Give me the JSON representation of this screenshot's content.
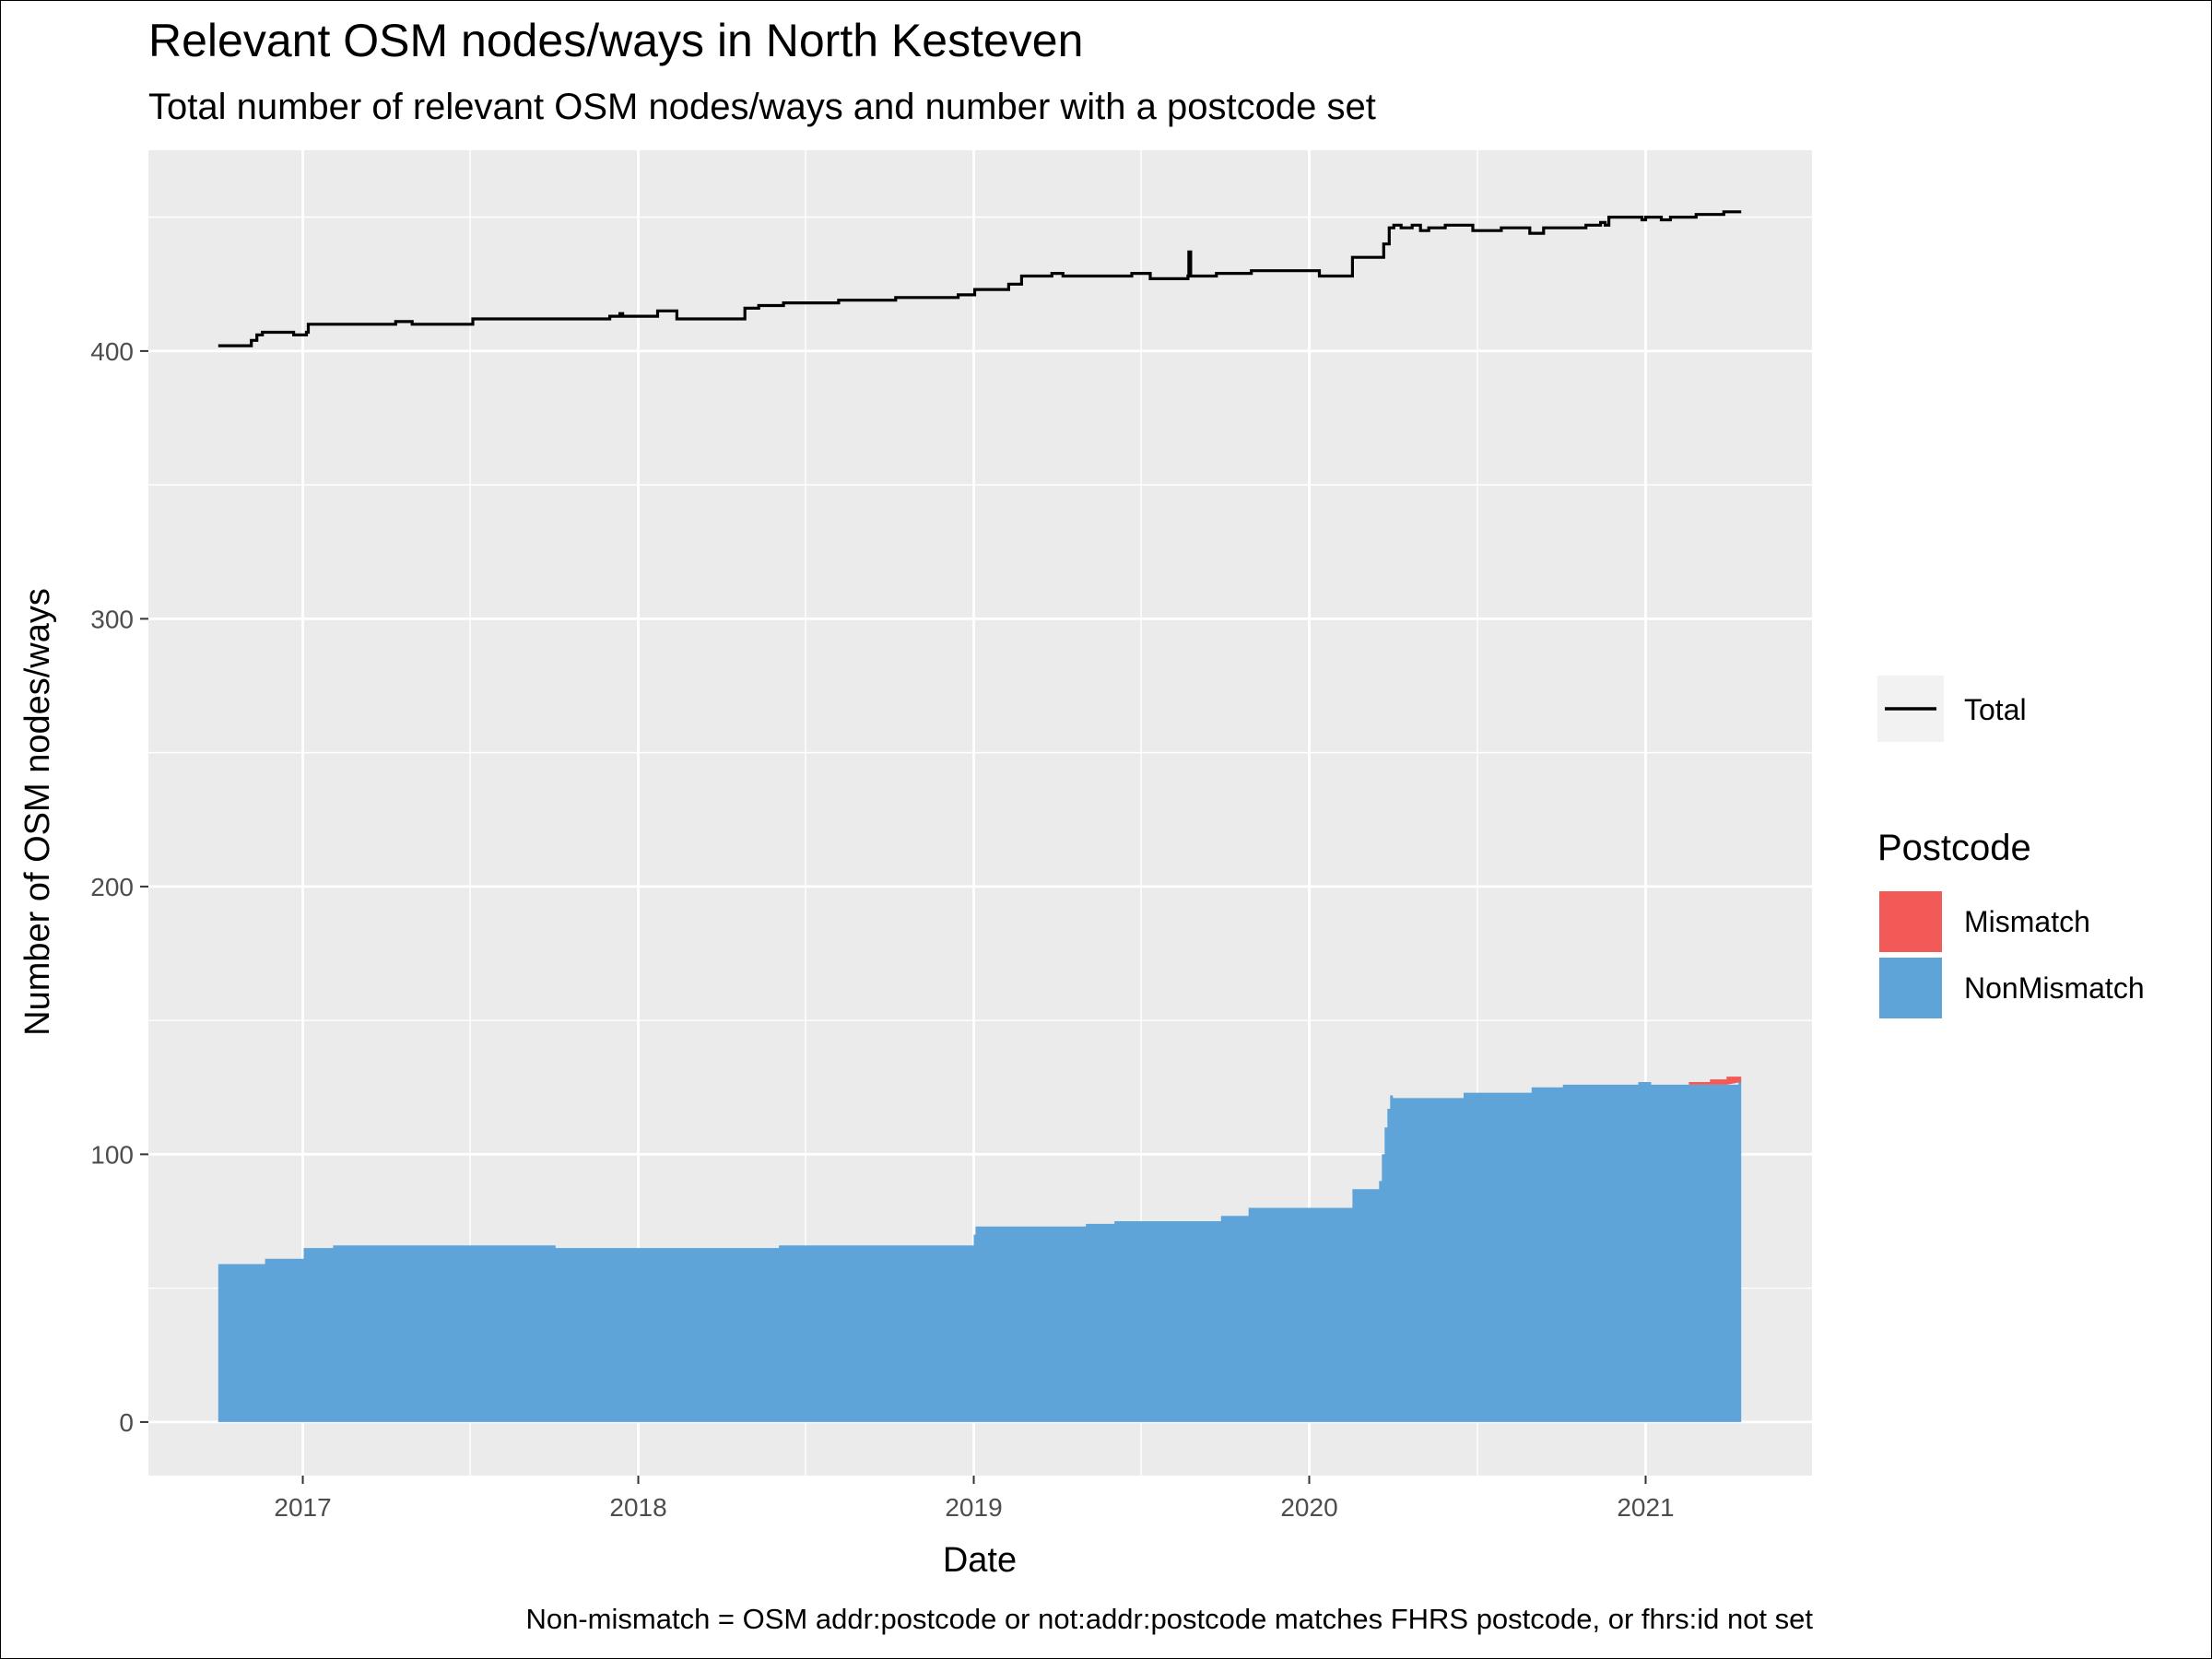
{
  "chart_data": {
    "type": "area",
    "title": "Relevant OSM nodes/ways in North Kesteven",
    "subtitle": "Total number of relevant OSM nodes/ways and number with a postcode set",
    "xlabel": "Date",
    "ylabel": "Number of OSM nodes/ways",
    "caption": "Non-mismatch = OSM addr:postcode or not:addr:postcode matches FHRS postcode, or fhrs:id not set",
    "x_ticks": [
      "2017",
      "2018",
      "2019",
      "2020",
      "2021"
    ],
    "y_ticks": [
      "0",
      "100",
      "200",
      "300",
      "400"
    ],
    "xlim": [
      "2016-07-17",
      "2021-07-01"
    ],
    "ylim": [
      -20,
      475
    ],
    "grid": true,
    "legend_line": {
      "label": "Total",
      "color": "#000000"
    },
    "legend_fill": {
      "title": "Postcode",
      "position": "right",
      "items": [
        {
          "label": "Mismatch",
          "color": "#F25A58"
        },
        {
          "label": "NonMismatch",
          "color": "#5FA4D9"
        }
      ]
    },
    "series": [
      {
        "name": "Total",
        "kind": "step-line",
        "color": "#000000",
        "points": [
          [
            "2016-10-01",
            402
          ],
          [
            "2016-11-05",
            402
          ],
          [
            "2016-11-06",
            404
          ],
          [
            "2016-11-12",
            406
          ],
          [
            "2016-11-18",
            407
          ],
          [
            "2016-12-20",
            407
          ],
          [
            "2016-12-22",
            406
          ],
          [
            "2017-01-01",
            406
          ],
          [
            "2017-01-05",
            407
          ],
          [
            "2017-01-07",
            410
          ],
          [
            "2017-04-10",
            410
          ],
          [
            "2017-04-12",
            411
          ],
          [
            "2017-04-28",
            411
          ],
          [
            "2017-04-30",
            410
          ],
          [
            "2017-06-20",
            410
          ],
          [
            "2017-06-30",
            410
          ],
          [
            "2017-07-05",
            412
          ],
          [
            "2017-11-30",
            412
          ],
          [
            "2017-12-01",
            413
          ],
          [
            "2017-12-10",
            413
          ],
          [
            "2017-12-12",
            414
          ],
          [
            "2017-12-15",
            413
          ],
          [
            "2018-01-20",
            413
          ],
          [
            "2018-01-22",
            415
          ],
          [
            "2018-02-10",
            415
          ],
          [
            "2018-02-12",
            412
          ],
          [
            "2018-04-25",
            412
          ],
          [
            "2018-04-27",
            416
          ],
          [
            "2018-05-10",
            416
          ],
          [
            "2018-05-12",
            417
          ],
          [
            "2018-06-05",
            417
          ],
          [
            "2018-06-08",
            418
          ],
          [
            "2018-08-05",
            418
          ],
          [
            "2018-08-07",
            419
          ],
          [
            "2018-10-05",
            419
          ],
          [
            "2018-10-08",
            420
          ],
          [
            "2018-12-10",
            420
          ],
          [
            "2018-12-15",
            421
          ],
          [
            "2019-01-01",
            421
          ],
          [
            "2019-01-02",
            423
          ],
          [
            "2019-02-05",
            423
          ],
          [
            "2019-02-08",
            425
          ],
          [
            "2019-02-20",
            425
          ],
          [
            "2019-02-22",
            428
          ],
          [
            "2019-03-25",
            428
          ],
          [
            "2019-03-27",
            429
          ],
          [
            "2019-04-05",
            429
          ],
          [
            "2019-04-08",
            428
          ],
          [
            "2019-06-20",
            428
          ],
          [
            "2019-06-22",
            429
          ],
          [
            "2019-07-10",
            429
          ],
          [
            "2019-07-12",
            427
          ],
          [
            "2019-08-20",
            427
          ],
          [
            "2019-08-22",
            428
          ],
          [
            "2019-08-23",
            437
          ],
          [
            "2019-08-25",
            428
          ],
          [
            "2019-09-20",
            428
          ],
          [
            "2019-09-22",
            429
          ],
          [
            "2019-10-28",
            429
          ],
          [
            "2019-10-30",
            430
          ],
          [
            "2020-01-10",
            430
          ],
          [
            "2020-01-12",
            428
          ],
          [
            "2020-02-15",
            428
          ],
          [
            "2020-02-17",
            435
          ],
          [
            "2020-03-20",
            435
          ],
          [
            "2020-03-22",
            440
          ],
          [
            "2020-03-28",
            446
          ],
          [
            "2020-04-02",
            447
          ],
          [
            "2020-04-10",
            446
          ],
          [
            "2020-04-20",
            446
          ],
          [
            "2020-04-22",
            447
          ],
          [
            "2020-05-01",
            445
          ],
          [
            "2020-05-10",
            446
          ],
          [
            "2020-05-25",
            446
          ],
          [
            "2020-05-28",
            447
          ],
          [
            "2020-06-25",
            447
          ],
          [
            "2020-06-27",
            445
          ],
          [
            "2020-07-25",
            445
          ],
          [
            "2020-07-28",
            446
          ],
          [
            "2020-08-25",
            446
          ],
          [
            "2020-08-28",
            444
          ],
          [
            "2020-09-10",
            444
          ],
          [
            "2020-09-12",
            446
          ],
          [
            "2020-10-25",
            446
          ],
          [
            "2020-10-28",
            447
          ],
          [
            "2020-11-10",
            447
          ],
          [
            "2020-11-13",
            448
          ],
          [
            "2020-11-18",
            447
          ],
          [
            "2020-11-22",
            450
          ],
          [
            "2020-12-25",
            450
          ],
          [
            "2020-12-28",
            449
          ],
          [
            "2021-01-01",
            450
          ],
          [
            "2021-01-15",
            450
          ],
          [
            "2021-01-18",
            449
          ],
          [
            "2021-01-25",
            449
          ],
          [
            "2021-01-28",
            450
          ],
          [
            "2021-02-22",
            450
          ],
          [
            "2021-02-25",
            451
          ],
          [
            "2021-03-25",
            451
          ],
          [
            "2021-03-27",
            452
          ],
          [
            "2021-04-15",
            452
          ]
        ]
      },
      {
        "name": "NonMismatch",
        "kind": "step-area",
        "color": "#5FA4D9",
        "points": [
          [
            "2016-10-01",
            59
          ],
          [
            "2016-11-20",
            59
          ],
          [
            "2016-11-21",
            61
          ],
          [
            "2017-01-01",
            61
          ],
          [
            "2017-01-02",
            65
          ],
          [
            "2017-02-01",
            65
          ],
          [
            "2017-02-03",
            66
          ],
          [
            "2017-10-01",
            66
          ],
          [
            "2017-10-03",
            65
          ],
          [
            "2018-06-01",
            65
          ],
          [
            "2018-06-03",
            66
          ],
          [
            "2018-12-31",
            66
          ],
          [
            "2019-01-01",
            70
          ],
          [
            "2019-01-03",
            73
          ],
          [
            "2019-05-01",
            73
          ],
          [
            "2019-05-03",
            74
          ],
          [
            "2019-06-01",
            74
          ],
          [
            "2019-06-03",
            75
          ],
          [
            "2019-09-25",
            75
          ],
          [
            "2019-09-27",
            77
          ],
          [
            "2019-10-25",
            77
          ],
          [
            "2019-10-27",
            80
          ],
          [
            "2020-02-15",
            80
          ],
          [
            "2020-02-17",
            87
          ],
          [
            "2020-03-15",
            87
          ],
          [
            "2020-03-17",
            90
          ],
          [
            "2020-03-20",
            100
          ],
          [
            "2020-03-23",
            110
          ],
          [
            "2020-03-26",
            117
          ],
          [
            "2020-03-29",
            122
          ],
          [
            "2020-04-01",
            121
          ],
          [
            "2020-06-15",
            121
          ],
          [
            "2020-06-17",
            123
          ],
          [
            "2020-08-28",
            123
          ],
          [
            "2020-08-30",
            125
          ],
          [
            "2020-10-01",
            125
          ],
          [
            "2020-10-03",
            126
          ],
          [
            "2020-12-22",
            126
          ],
          [
            "2020-12-24",
            127
          ],
          [
            "2021-01-05",
            127
          ],
          [
            "2021-01-07",
            126
          ],
          [
            "2021-04-10",
            126
          ],
          [
            "2021-04-12",
            127
          ],
          [
            "2021-04-15",
            127
          ]
        ]
      },
      {
        "name": "Mismatch",
        "kind": "step-area-stacked",
        "color": "#F25A58",
        "points": [
          [
            "2021-02-15",
            0
          ],
          [
            "2021-02-17",
            1
          ],
          [
            "2021-03-10",
            1
          ],
          [
            "2021-03-12",
            2
          ],
          [
            "2021-03-28",
            2
          ],
          [
            "2021-03-30",
            3
          ],
          [
            "2021-04-15",
            3
          ]
        ]
      }
    ]
  }
}
